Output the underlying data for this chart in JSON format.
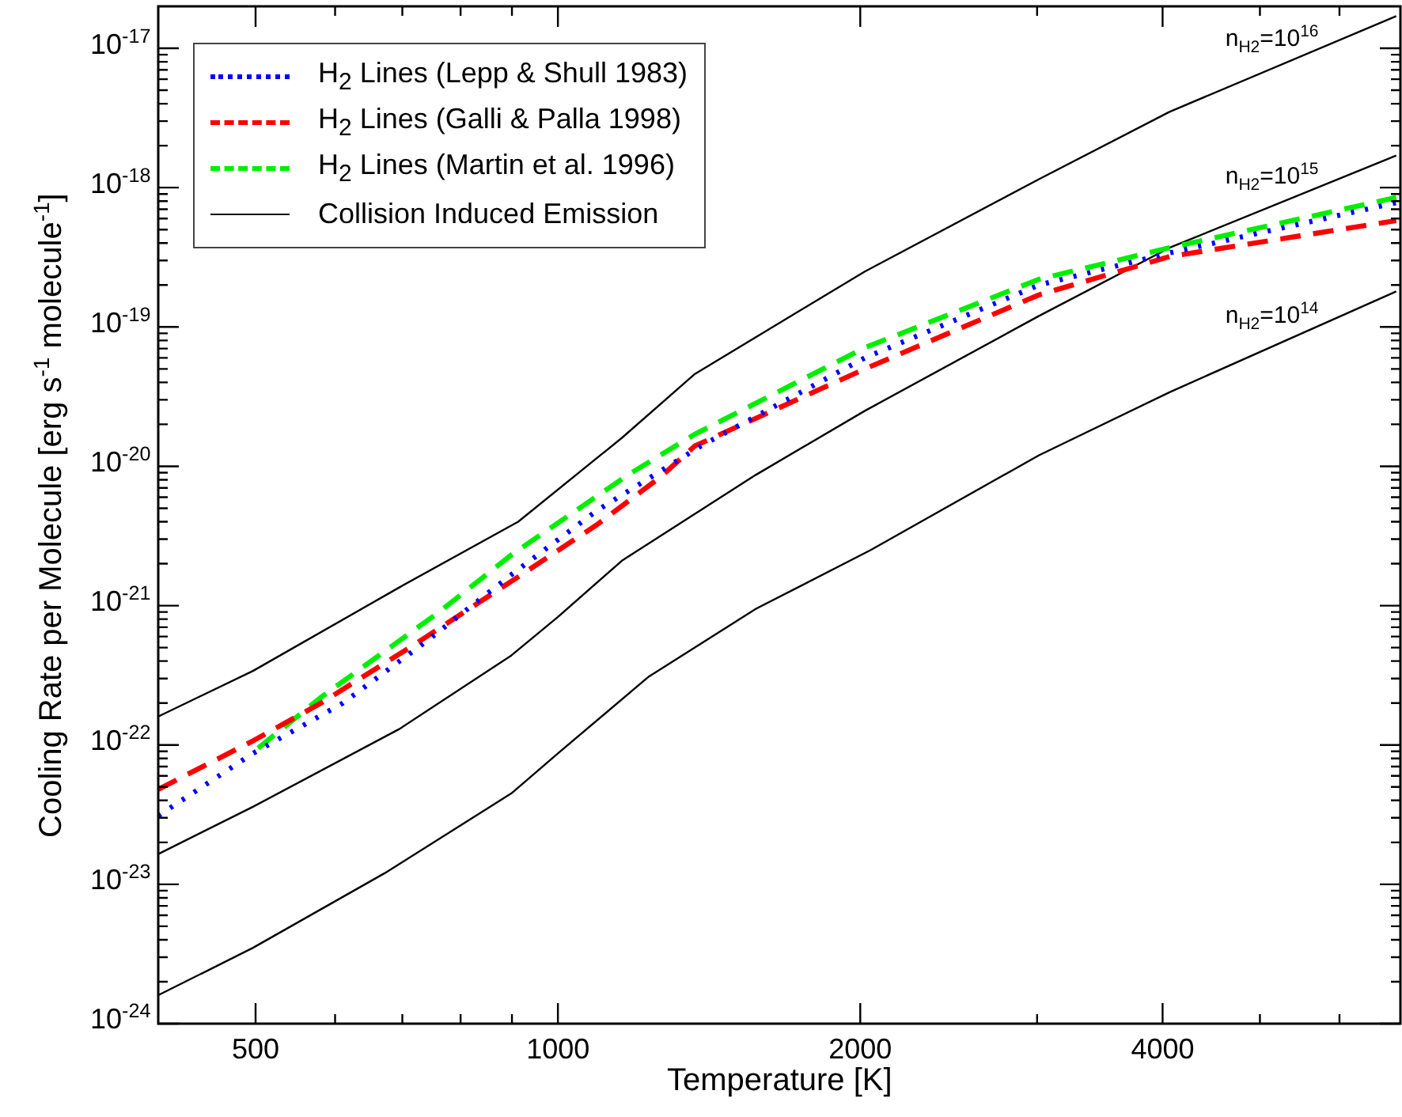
{
  "chart_data": {
    "type": "line",
    "xlabel": "Temperature [K]",
    "ylabel": "Cooling Rate per Molecule [erg s$^{-1}$ molecule$^{-1}$]",
    "log": "xy",
    "legend": "top left",
    "xlim": [
      400,
      6900
    ],
    "ylim": [
      1e-24,
      2e-17
    ],
    "xticks": [
      500,
      1000,
      2000,
      4000,
      {
        "value": 600,
        "label": null
      },
      {
        "value": 700,
        "label": null
      },
      {
        "value": 800,
        "label": null
      },
      {
        "value": 900,
        "label": null
      },
      {
        "value": 3000,
        "label": null
      },
      {
        "value": 5000,
        "label": null
      },
      {
        "value": 6000,
        "label": null
      }
    ],
    "yticks": [
      {
        "value": 1e-24,
        "label": "10$^{-24}$"
      },
      {
        "value": 1e-23,
        "label": "10$^{-23}$"
      },
      {
        "value": 1e-22,
        "label": "10$^{-22}$"
      },
      {
        "value": 1e-21,
        "label": "10$^{-21}$"
      },
      {
        "value": 1e-20,
        "label": "10$^{-20}$"
      },
      {
        "value": 1e-19,
        "label": "10$^{-19}$"
      },
      {
        "value": 1e-18,
        "label": "10$^{-18}$"
      },
      {
        "value": 1e-17,
        "label": "10$^{-17}$"
      },
      {
        "value": 2e-24,
        "label": null
      },
      {
        "value": 3e-24,
        "label": null
      },
      {
        "value": 4e-24,
        "label": null
      },
      {
        "value": 5e-24,
        "label": null
      },
      {
        "value": 6e-24,
        "label": null
      },
      {
        "value": 7e-24,
        "label": null
      },
      {
        "value": 8e-24,
        "label": null
      },
      {
        "value": 9e-24,
        "label": null
      },
      {
        "value": 2e-23,
        "label": null
      },
      {
        "value": 3e-23,
        "label": null
      },
      {
        "value": 4e-23,
        "label": null
      },
      {
        "value": 5e-23,
        "label": null
      },
      {
        "value": 6e-23,
        "label": null
      },
      {
        "value": 7e-23,
        "label": null
      },
      {
        "value": 8e-23,
        "label": null
      },
      {
        "value": 9e-23,
        "label": null
      },
      {
        "value": 2e-22,
        "label": null
      },
      {
        "value": 3e-22,
        "label": null
      },
      {
        "value": 4e-22,
        "label": null
      },
      {
        "value": 5e-22,
        "label": null
      },
      {
        "value": 6e-22,
        "label": null
      },
      {
        "value": 7e-22,
        "label": null
      },
      {
        "value": 8e-22,
        "label": null
      },
      {
        "value": 9e-22,
        "label": null
      },
      {
        "value": 2e-21,
        "label": null
      },
      {
        "value": 3e-21,
        "label": null
      },
      {
        "value": 4e-21,
        "label": null
      },
      {
        "value": 5e-21,
        "label": null
      },
      {
        "value": 6e-21,
        "label": null
      },
      {
        "value": 7e-21,
        "label": null
      },
      {
        "value": 8e-21,
        "label": null
      },
      {
        "value": 9e-21,
        "label": null
      },
      {
        "value": 2e-20,
        "label": null
      },
      {
        "value": 3e-20,
        "label": null
      },
      {
        "value": 4e-20,
        "label": null
      },
      {
        "value": 5e-20,
        "label": null
      },
      {
        "value": 6e-20,
        "label": null
      },
      {
        "value": 7e-20,
        "label": null
      },
      {
        "value": 8e-20,
        "label": null
      },
      {
        "value": 9e-20,
        "label": null
      },
      {
        "value": 2e-19,
        "label": null
      },
      {
        "value": 3e-19,
        "label": null
      },
      {
        "value": 4e-19,
        "label": null
      },
      {
        "value": 5e-19,
        "label": null
      },
      {
        "value": 6e-19,
        "label": null
      },
      {
        "value": 7e-19,
        "label": null
      },
      {
        "value": 8e-19,
        "label": null
      },
      {
        "value": 9e-19,
        "label": null
      },
      {
        "value": 2e-18,
        "label": null
      },
      {
        "value": 3e-18,
        "label": null
      },
      {
        "value": 4e-18,
        "label": null
      },
      {
        "value": 5e-18,
        "label": null
      },
      {
        "value": 6e-18,
        "label": null
      },
      {
        "value": 7e-18,
        "label": null
      },
      {
        "value": 8e-18,
        "label": null
      },
      {
        "value": 9e-18,
        "label": null
      }
    ],
    "series": [
      {
        "name": "H$_{2}$ Lines (Lepp & Shull 1983)",
        "color": "#0000ff",
        "line_style": "dotted",
        "x": [
          400,
          497,
          611,
          741,
          898,
          1093,
          1388,
          2021,
          3013,
          4064,
          6834
        ],
        "values": [
          3.1e-23,
          8.7e-23,
          2e-22,
          5.6e-22,
          1.66e-21,
          4.8e-21,
          1.4e-20,
          6e-20,
          2e-19,
          3.4e-19,
          7.8e-19
        ]
      },
      {
        "name": "H$_{2}$ Lines (Galli & Palla 1998)",
        "color": "#ff0000",
        "line_style": "dashed",
        "x": [
          400,
          497,
          581,
          715,
          912,
          1093,
          1263,
          1369,
          2021,
          3013,
          4064,
          6834
        ],
        "values": [
          4.8e-23,
          1.07e-22,
          2e-22,
          5.1e-22,
          1.6e-21,
          3.8e-21,
          8.3e-21,
          1.4e-20,
          5e-20,
          1.7e-19,
          3.2e-19,
          5.8e-19
        ]
      },
      {
        "name": "H$_{2}$ Lines (Martin et al. 1996)",
        "color": "#00ee00",
        "line_style": "dashed",
        "x": [
          503,
          581,
          760,
          898,
          1175,
          1369,
          2021,
          3013,
          4064,
          6834
        ],
        "values": [
          9.5e-23,
          2.2e-22,
          8.9e-22,
          2.3e-21,
          8.7e-21,
          1.7e-20,
          7.1e-20,
          2.2e-19,
          3.7e-19,
          8.5e-19
        ]
      },
      {
        "name": "Collision Induced Emission",
        "color": "#000000",
        "line_style": "solid",
        "x": [
          400,
          497,
          695,
          913,
          1158,
          1369,
          2021,
          3013,
          4064,
          6834
        ],
        "values": [
          1.6e-22,
          3.4e-22,
          1.35e-21,
          4e-21,
          1.6e-20,
          4.6e-20,
          2.5e-19,
          1.15e-18,
          3.5e-18,
          1.7e-17
        ]
      },
      {
        "color": "#000000",
        "line_style": "solid",
        "x": [
          400,
          497,
          695,
          899,
          1000,
          1158,
          1575,
          2021,
          3013,
          4064,
          6834
        ],
        "values": [
          1.65e-23,
          3.6e-23,
          1.3e-22,
          4.4e-22,
          8.3e-22,
          2.1e-21,
          8.7e-21,
          2.5e-20,
          1.2e-19,
          3.7e-19,
          1.7e-18
        ]
      },
      {
        "color": "#000000",
        "line_style": "solid",
        "x": [
          400,
          497,
          672,
          899,
          1000,
          1232,
          1575,
          2047,
          3013,
          4064,
          6834
        ],
        "values": [
          1.6e-24,
          3.5e-24,
          1.2e-23,
          4.5e-23,
          8.7e-23,
          3.1e-22,
          9.5e-22,
          2.5e-21,
          1.2e-20,
          3.4e-20,
          1.8e-19
        ]
      }
    ],
    "annotations": [
      "n$_{H2}$=10$^{16}$",
      "n$_{H2}$=10$^{15}$",
      "n$_{H2}$=10$^{14}$"
    ]
  }
}
